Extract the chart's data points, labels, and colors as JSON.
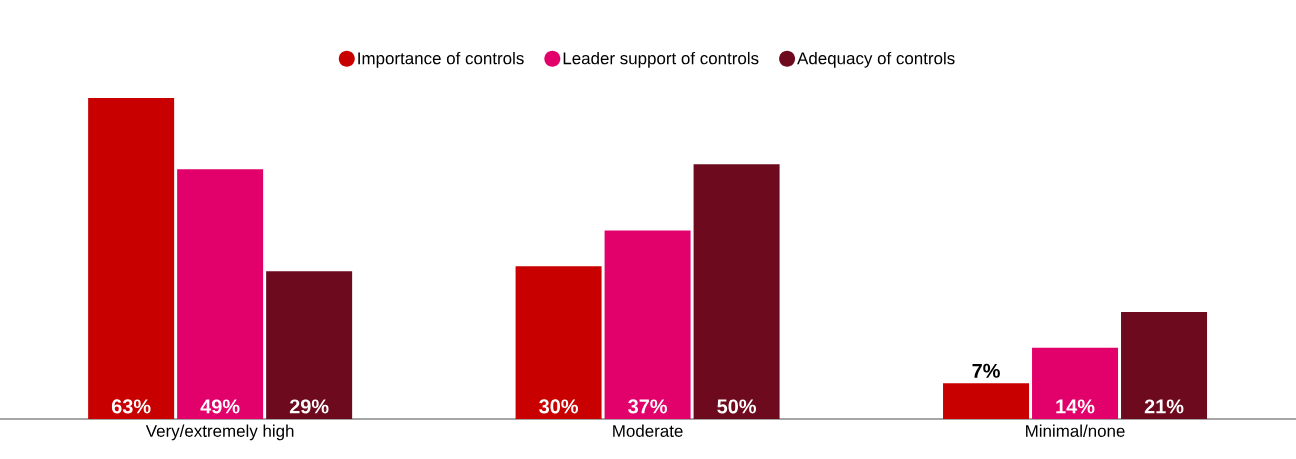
{
  "chart_data": {
    "type": "bar",
    "categories": [
      "Very/extremely high",
      "Moderate",
      "Minimal/none"
    ],
    "series": [
      {
        "name": "Importance of controls",
        "color": "#c80000",
        "values": [
          63,
          30,
          7
        ],
        "value_labels": [
          "63%",
          "30%",
          "7%"
        ]
      },
      {
        "name": "Leader support of controls",
        "color": "#e2006a",
        "values": [
          49,
          37,
          14
        ],
        "value_labels": [
          "49%",
          "37%",
          "14%"
        ]
      },
      {
        "name": "Adequacy of controls",
        "color": "#6d0a1e",
        "values": [
          29,
          50,
          21
        ],
        "value_labels": [
          "29%",
          "50%",
          "21%"
        ]
      }
    ],
    "legend": "top"
  }
}
